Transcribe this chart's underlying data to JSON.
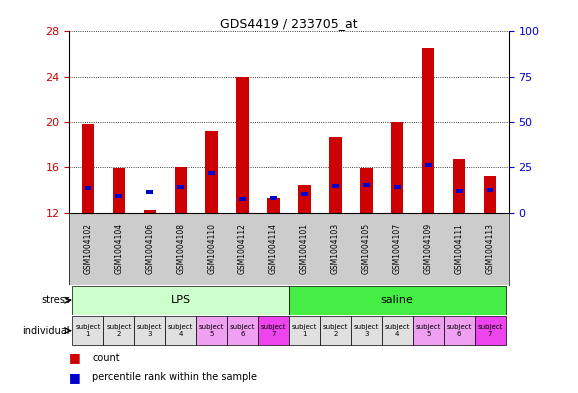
{
  "title": "GDS4419 / 233705_at",
  "samples": [
    "GSM1004102",
    "GSM1004104",
    "GSM1004106",
    "GSM1004108",
    "GSM1004110",
    "GSM1004112",
    "GSM1004114",
    "GSM1004101",
    "GSM1004103",
    "GSM1004105",
    "GSM1004107",
    "GSM1004109",
    "GSM1004111",
    "GSM1004113"
  ],
  "count_values": [
    19.8,
    15.9,
    12.2,
    16.0,
    19.2,
    24.0,
    13.3,
    14.4,
    18.7,
    15.9,
    20.0,
    26.5,
    16.7,
    15.2
  ],
  "percentile_values": [
    14.0,
    13.3,
    13.6,
    14.1,
    15.3,
    13.0,
    13.1,
    13.5,
    14.2,
    14.3,
    14.1,
    16.0,
    13.7,
    13.8
  ],
  "blue_bar_height": 0.35,
  "ylim_left": [
    12,
    28
  ],
  "yticks_left": [
    12,
    16,
    20,
    24,
    28
  ],
  "ylim_right": [
    0,
    100
  ],
  "yticks_right": [
    0,
    25,
    50,
    75,
    100
  ],
  "stress_groups": [
    {
      "label": "LPS",
      "start": 0,
      "end": 7,
      "color": "#ccffcc"
    },
    {
      "label": "saline",
      "start": 7,
      "end": 14,
      "color": "#44ee44"
    }
  ],
  "individual_labels": [
    "subject\n1",
    "subject\n2",
    "subject\n3",
    "subject\n4",
    "subject\n5",
    "subject\n6",
    "subject\n7",
    "subject\n1",
    "subject\n2",
    "subject\n3",
    "subject\n4",
    "subject\n5",
    "subject\n6",
    "subject\n7"
  ],
  "individual_colors": [
    "#e0e0e0",
    "#e0e0e0",
    "#e0e0e0",
    "#e0e0e0",
    "#f0a0f0",
    "#f0a0f0",
    "#ee44ee",
    "#e0e0e0",
    "#e0e0e0",
    "#e0e0e0",
    "#e0e0e0",
    "#f0a0f0",
    "#f0a0f0",
    "#ee44ee"
  ],
  "bar_color_red": "#cc0000",
  "bar_color_blue": "#0000cc",
  "bar_width": 0.4,
  "bg_color": "#ffffff",
  "plot_bg": "#ffffff",
  "grid_color": "#000000",
  "axis_color_left": "#cc0000",
  "axis_color_right": "#0000cc",
  "xticklabels_bg": "#cccccc"
}
